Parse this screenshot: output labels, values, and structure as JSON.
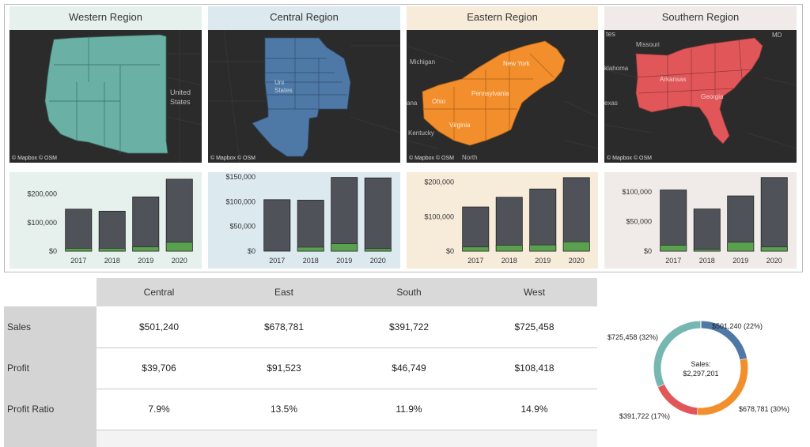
{
  "regions": [
    {
      "key": "west",
      "title": "Western Region",
      "color": "#6ab0a4",
      "bg": "#e6f0ec",
      "bgTitle": "#e6f0ec",
      "map_labels": [
        "United",
        "States"
      ],
      "map_credit": "© Mapbox  © OSM"
    },
    {
      "key": "central",
      "title": "Central Region",
      "color": "#4e79a7",
      "bg": "#dce9ef",
      "bgTitle": "#dce9ef",
      "map_labels": [
        "Uni",
        "States"
      ],
      "map_credit": "© Mapbox  © OSM"
    },
    {
      "key": "east",
      "title": "Eastern Region",
      "color": "#f28e2b",
      "bg": "#f7ebd9",
      "bgTitle": "#f7ebd9",
      "map_labels": [
        "Michigan",
        "Ohio",
        "Kentucky",
        "ana",
        "North",
        "New York",
        "Pennsylvania",
        "Virginia"
      ],
      "map_credit": "© Mapbox  © OSM"
    },
    {
      "key": "south",
      "title": "Southern Region",
      "color": "#e15759",
      "bg": "#f0ebe8",
      "bgTitle": "#f0ebe8",
      "map_labels": [
        "tes",
        "Missouri",
        "klahoma",
        "exas",
        "Arkansas",
        "Georgia",
        "MD"
      ],
      "map_credit": "© Mapbox  © OSM"
    }
  ],
  "chart_data": [
    {
      "type": "bar",
      "title": "Western Region",
      "categories": [
        "2017",
        "2018",
        "2019",
        "2020"
      ],
      "series": [
        {
          "name": "Sales",
          "values": [
            147000,
            140000,
            190000,
            252000
          ]
        },
        {
          "name": "Profit",
          "values": [
            10000,
            10000,
            15000,
            31000
          ]
        }
      ],
      "ylim": [
        0,
        260000
      ],
      "ticks": [
        0,
        100000,
        200000
      ],
      "tick_labels": [
        "$0",
        "$100,000",
        "$200,000"
      ]
    },
    {
      "type": "bar",
      "title": "Central Region",
      "categories": [
        "2017",
        "2018",
        "2019",
        "2020"
      ],
      "series": [
        {
          "name": "Sales",
          "values": [
            104000,
            103000,
            149000,
            148000
          ]
        },
        {
          "name": "Profit",
          "values": [
            0,
            8000,
            15000,
            5000
          ]
        }
      ],
      "ylim": [
        0,
        150000
      ],
      "ticks": [
        0,
        50000,
        100000,
        150000
      ],
      "tick_labels": [
        "$0",
        "$50,000",
        "$100,000",
        "$150,000"
      ]
    },
    {
      "type": "bar",
      "title": "Eastern Region",
      "categories": [
        "2017",
        "2018",
        "2019",
        "2020"
      ],
      "series": [
        {
          "name": "Sales",
          "values": [
            128000,
            156000,
            180000,
            213000
          ]
        },
        {
          "name": "Profit",
          "values": [
            12000,
            17000,
            18000,
            27000
          ]
        }
      ],
      "ylim": [
        0,
        215000
      ],
      "ticks": [
        0,
        100000,
        200000
      ],
      "tick_labels": [
        "$0",
        "$100,000",
        "$200,000"
      ]
    },
    {
      "type": "bar",
      "title": "Southern Region",
      "categories": [
        "2017",
        "2018",
        "2019",
        "2020"
      ],
      "series": [
        {
          "name": "Sales",
          "values": [
            103000,
            71000,
            93000,
            124000
          ]
        },
        {
          "name": "Profit",
          "values": [
            10000,
            3000,
            15000,
            7000
          ]
        }
      ],
      "ylim": [
        0,
        125000
      ],
      "ticks": [
        0,
        50000,
        100000
      ],
      "tick_labels": [
        "$0",
        "$50,000",
        "$100,000"
      ]
    },
    {
      "type": "pie",
      "title": "Sales by Region",
      "center_label_1": "Sales:",
      "center_label_2": "$2,297,201",
      "slices": [
        {
          "name": "Central",
          "value": 501240,
          "label": "$501,240 (22%)",
          "color": "#4e79a7"
        },
        {
          "name": "East",
          "value": 678781,
          "label": "$678,781 (30%)",
          "color": "#f28e2b"
        },
        {
          "name": "South",
          "value": 391722,
          "label": "$391,722 (17%)",
          "color": "#e15759"
        },
        {
          "name": "West",
          "value": 725458,
          "label": "$725,458 (32%)",
          "color": "#76b7b2"
        }
      ]
    }
  ],
  "table": {
    "columns": [
      "Central",
      "East",
      "South",
      "West"
    ],
    "rows": [
      {
        "label": "Sales",
        "values": [
          "$501,240",
          "$678,781",
          "$391,722",
          "$725,458"
        ]
      },
      {
        "label": "Profit",
        "values": [
          "$39,706",
          "$91,523",
          "$46,749",
          "$108,418"
        ]
      },
      {
        "label": "Profit Ratio",
        "values": [
          "7.9%",
          "13.5%",
          "11.9%",
          "14.9%"
        ]
      }
    ]
  },
  "colors": {
    "bar_sales": "#4f5259",
    "bar_profit": "#59a14f",
    "map_bg": "#2b2b2b"
  }
}
